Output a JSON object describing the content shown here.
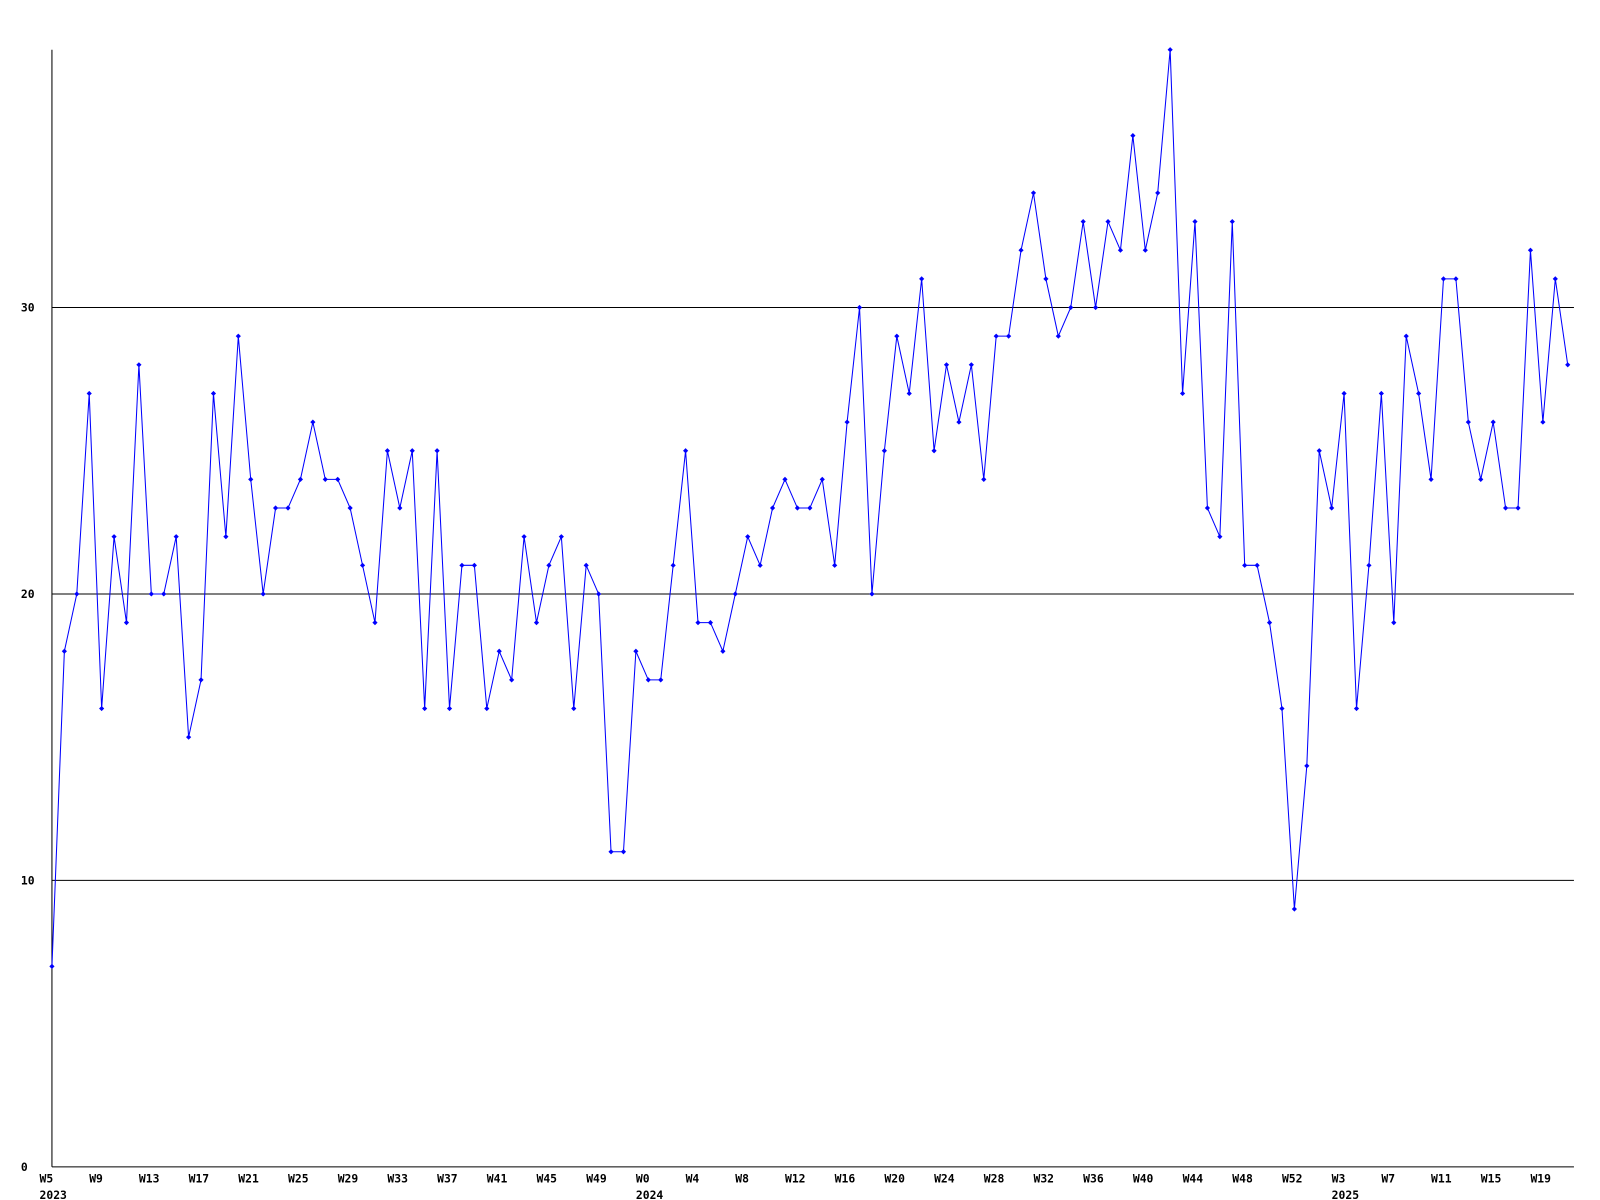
{
  "chart_data": {
    "type": "line",
    "categories": [
      "W5",
      null,
      null,
      null,
      "W9",
      null,
      null,
      null,
      "W13",
      null,
      null,
      null,
      "W17",
      null,
      null,
      null,
      "W21",
      null,
      null,
      null,
      "W25",
      null,
      null,
      null,
      "W29",
      null,
      null,
      null,
      "W33",
      null,
      null,
      null,
      "W37",
      null,
      null,
      null,
      "W41",
      null,
      null,
      null,
      "W45",
      null,
      null,
      null,
      "W49",
      null,
      null,
      null,
      "W0",
      null,
      null,
      null,
      "W4",
      null,
      null,
      null,
      "W8",
      null,
      null,
      null,
      "W12",
      null,
      null,
      null,
      "W16",
      null,
      null,
      null,
      "W20",
      null,
      null,
      null,
      "W24",
      null,
      null,
      null,
      "W28",
      null,
      null,
      null,
      "W32",
      null,
      null,
      null,
      "W36",
      null,
      null,
      null,
      "W40",
      null,
      null,
      null,
      "W44",
      null,
      null,
      null,
      "W48",
      null,
      null,
      null,
      "W52",
      null,
      null,
      null,
      "W3",
      null,
      null,
      null,
      "W7",
      null,
      null,
      null,
      "W11",
      null,
      null,
      null,
      "W15",
      null,
      null,
      null,
      "W19",
      null,
      null
    ],
    "years": [
      "2023",
      null,
      null,
      null,
      null,
      null,
      null,
      null,
      null,
      null,
      null,
      null,
      null,
      null,
      null,
      null,
      null,
      null,
      null,
      null,
      null,
      null,
      null,
      null,
      null,
      null,
      null,
      null,
      null,
      null,
      null,
      null,
      null,
      null,
      null,
      null,
      null,
      null,
      null,
      null,
      null,
      null,
      null,
      null,
      null,
      null,
      null,
      null,
      "2024",
      null,
      null,
      null,
      null,
      null,
      null,
      null,
      null,
      null,
      null,
      null,
      null,
      null,
      null,
      null,
      null,
      null,
      null,
      null,
      null,
      null,
      null,
      null,
      null,
      null,
      null,
      null,
      null,
      null,
      null,
      null,
      null,
      null,
      null,
      null,
      null,
      null,
      null,
      null,
      null,
      null,
      null,
      null,
      null,
      null,
      null,
      null,
      null,
      null,
      null,
      null,
      null,
      null,
      null,
      null,
      "2025",
      null,
      null,
      null,
      null,
      null,
      null,
      null,
      null,
      null,
      null,
      null,
      null,
      null,
      null,
      null,
      null,
      null,
      null,
      null,
      null
    ],
    "series": [
      {
        "color": "#0000ff",
        "values": [
          7,
          18,
          20,
          27,
          16,
          22,
          19,
          28,
          20,
          20,
          22,
          15,
          17,
          27,
          22,
          29,
          24,
          20,
          23,
          23,
          24,
          26,
          24,
          24,
          23,
          21,
          19,
          25,
          23,
          25,
          16,
          25,
          16,
          21,
          21,
          16,
          18,
          17,
          22,
          19,
          21,
          22,
          16,
          21,
          20,
          11,
          11,
          18,
          17,
          17,
          21,
          25,
          19,
          19,
          18,
          20,
          22,
          21,
          23,
          24,
          23,
          23,
          24,
          21,
          26,
          30,
          20,
          25,
          29,
          27,
          31,
          25,
          28,
          26,
          28,
          24,
          29,
          29,
          32,
          34,
          31,
          29,
          30,
          33,
          30,
          33,
          32,
          36,
          32,
          34,
          39,
          27,
          33,
          23,
          22,
          33,
          21,
          21,
          19,
          16,
          9,
          14,
          25,
          23,
          27,
          16,
          21,
          27,
          19,
          29,
          27,
          24,
          31,
          31,
          26,
          24,
          26,
          23,
          23,
          32,
          26,
          31,
          28
        ]
      }
    ],
    "ylim": [
      0,
      39
    ],
    "yticks": [
      0,
      10,
      20,
      30
    ],
    "grid": true
  }
}
